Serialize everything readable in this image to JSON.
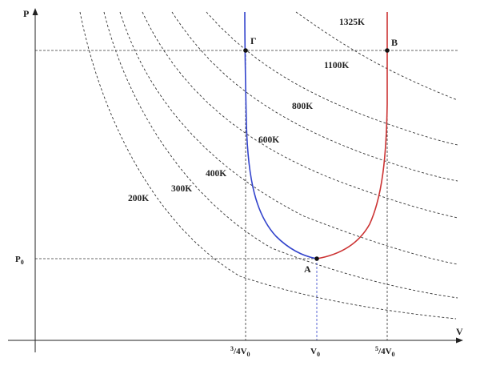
{
  "axes": {
    "x_label": "V",
    "y_label": "P"
  },
  "ticks": {
    "x": [
      {
        "id": "three-quarter-v0",
        "sup": "3",
        "mid": "/",
        "main": "4V",
        "sub": "0"
      },
      {
        "id": "v0",
        "sup": "",
        "mid": "",
        "main": "V",
        "sub": "0"
      },
      {
        "id": "five-quarter-v0",
        "sup": "5",
        "mid": "/",
        "main": "4V",
        "sub": "0"
      }
    ],
    "y": [
      {
        "id": "p0",
        "main": "P",
        "sub": "0"
      }
    ]
  },
  "points": {
    "A": "A",
    "B": "B",
    "G": "Γ"
  },
  "isotherms": [
    {
      "label": "200K"
    },
    {
      "label": "300K"
    },
    {
      "label": "400K"
    },
    {
      "label": "600K"
    },
    {
      "label": "800K"
    },
    {
      "label": "1100K"
    },
    {
      "label": "1325K"
    }
  ],
  "colors": {
    "process_left": "#3344cc",
    "process_right": "#cc3333",
    "axis": "#222222",
    "isotherm": "#333333"
  }
}
